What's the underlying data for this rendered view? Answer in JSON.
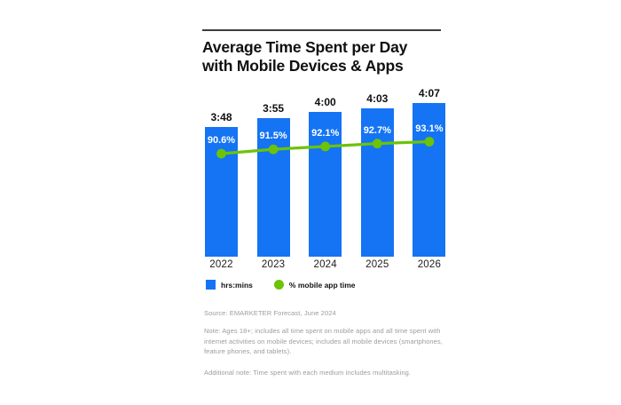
{
  "header": {
    "title": "Average Time Spent per Day with Mobile Devices & Apps"
  },
  "chart_data": {
    "type": "bar",
    "subtype": "bar-line-combo",
    "title": "Average Time Spent per Day with Mobile Devices & Apps",
    "categories": [
      "2022",
      "2023",
      "2024",
      "2025",
      "2026"
    ],
    "series": [
      {
        "name": "hrs:mins",
        "type": "bar",
        "labels": [
          "3:48",
          "3:55",
          "4:00",
          "4:03",
          "4:07"
        ],
        "minutes": [
          228,
          235,
          240,
          243,
          247
        ],
        "color": "#1474f4"
      },
      {
        "name": "% mobile app time",
        "type": "line",
        "labels": [
          "90.6%",
          "91.5%",
          "92.1%",
          "92.7%",
          "93.1%"
        ],
        "values": [
          90.6,
          91.5,
          92.1,
          92.7,
          93.1
        ],
        "color": "#6cc308"
      }
    ],
    "legend_position": "bottom",
    "grid": false,
    "y_axis_shown": false
  },
  "legend": {
    "items": [
      {
        "label": "hrs:mins",
        "swatch": "square",
        "color": "#1474f4"
      },
      {
        "label": "% mobile app time",
        "swatch": "circle",
        "color": "#6cc308"
      }
    ]
  },
  "footer": {
    "source": "Source: EMARKETER Forecast, June 2024",
    "note": "Note: Ages 18+; includes all time spent on mobile apps and all time spent with internet activities on mobile devices; includes all mobile devices (smartphones, feature phones, and tablets).",
    "additional_note": "Additional note: Time spent with each medium includes multitasking."
  }
}
